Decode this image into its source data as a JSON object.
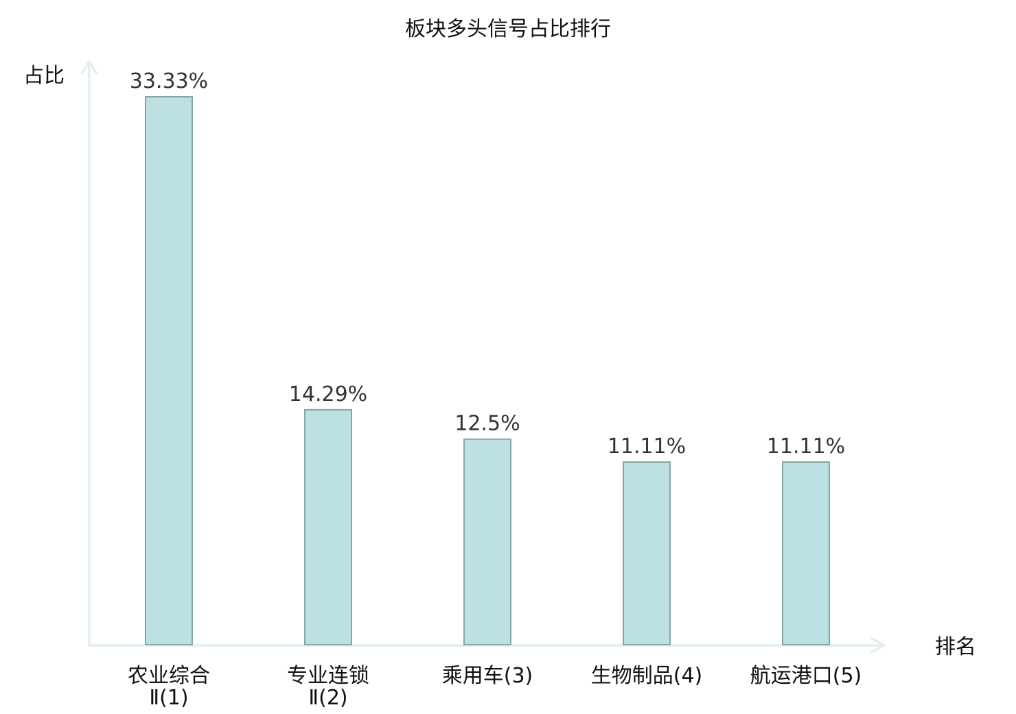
{
  "chart_data": {
    "type": "bar",
    "title": "板块多头信号占比排行",
    "ylabel": "占比",
    "xlabel": "排名",
    "unit": "%",
    "ylim": [
      0,
      35
    ],
    "categories": [
      {
        "name": "农业综合",
        "rank_suffix": "Ⅱ(1)",
        "wrapped": true,
        "highlight": false
      },
      {
        "name": "专业连锁",
        "rank_suffix": "Ⅱ(2)",
        "wrapped": true,
        "highlight": false
      },
      {
        "name": "乘用车",
        "rank_suffix": "(3)",
        "wrapped": false,
        "highlight": false
      },
      {
        "name": "生物制品",
        "rank_suffix": "(4)",
        "wrapped": false,
        "highlight": true
      },
      {
        "name": "航运港口",
        "rank_suffix": "(5)",
        "wrapped": false,
        "highlight": false
      }
    ],
    "values": [
      33.33,
      14.29,
      12.5,
      11.11,
      11.11
    ],
    "value_labels": [
      "33.33%",
      "14.29%",
      "12.5%",
      "11.11%",
      "11.11%"
    ],
    "grid": false,
    "legend": "none",
    "colors": {
      "bar_fill": "#bde0e2",
      "bar_stroke": "#8aa4a6",
      "axis": "#e3f2ef",
      "highlight": "#e02020",
      "text": "#111111",
      "value_text": "#333333"
    }
  }
}
